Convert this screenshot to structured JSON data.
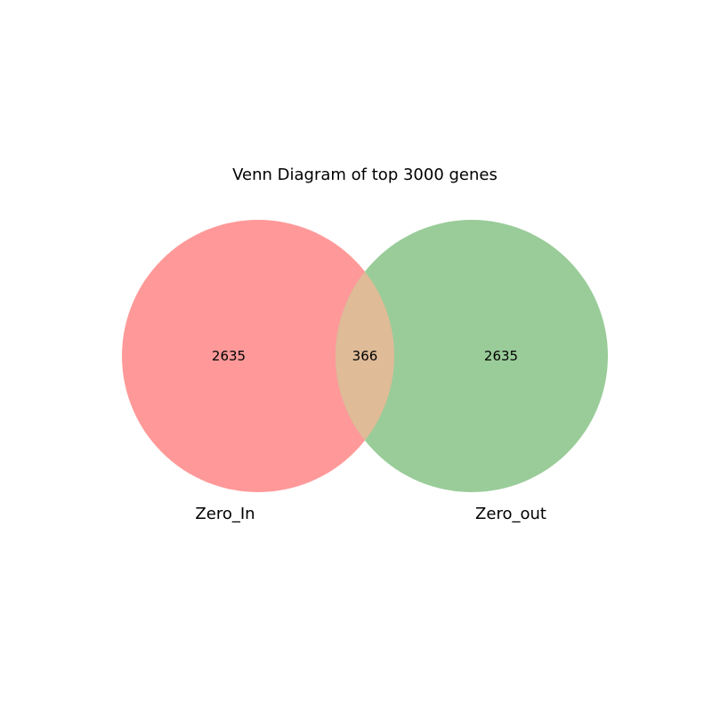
{
  "title": "Venn Diagram of top 3000 genes",
  "sets": [
    {
      "name": "Zero_In",
      "color": "#ff9999"
    },
    {
      "name": "Zero_out",
      "color": "#99cc99"
    }
  ],
  "overlap_color": "#dfbb98",
  "regions": {
    "only_a": "2635",
    "both": "366",
    "only_b": "2635"
  }
}
